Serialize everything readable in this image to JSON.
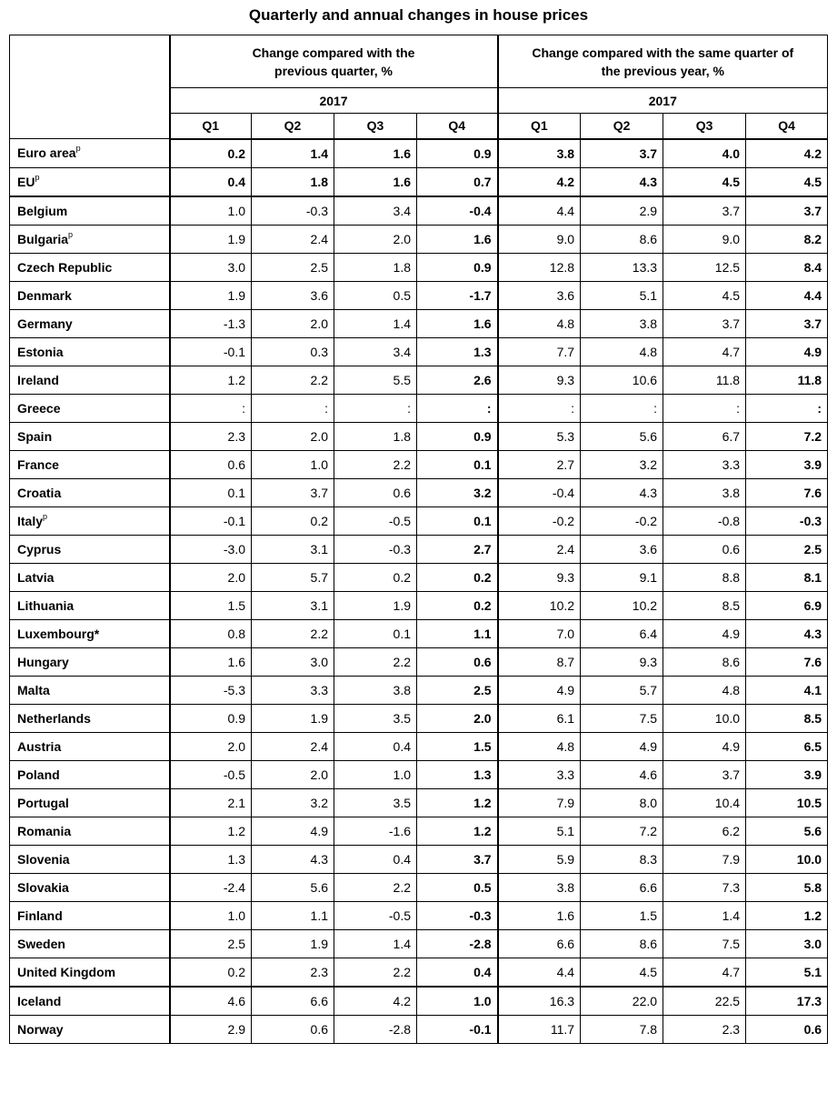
{
  "title": "Quarterly and annual changes in house prices",
  "header": {
    "group1": "Change compared with the previous quarter, %",
    "group2": "Change compared with the same quarter of the previous year, %",
    "year": "2017",
    "quarters": [
      "Q1",
      "Q2",
      "Q3",
      "Q4"
    ]
  },
  "rows": [
    {
      "name": "Euro area",
      "sup": "p",
      "qoq": [
        "0.2",
        "1.4",
        "1.6",
        "0.9"
      ],
      "yoy": [
        "3.8",
        "3.7",
        "4.0",
        "4.2"
      ],
      "aggregate": true
    },
    {
      "name": "EU",
      "sup": "p",
      "qoq": [
        "0.4",
        "1.8",
        "1.6",
        "0.7"
      ],
      "yoy": [
        "4.2",
        "4.3",
        "4.5",
        "4.5"
      ],
      "aggregate": true
    },
    {
      "name": "Belgium",
      "sup": "",
      "qoq": [
        "1.0",
        "-0.3",
        "3.4",
        "-0.4"
      ],
      "yoy": [
        "4.4",
        "2.9",
        "3.7",
        "3.7"
      ]
    },
    {
      "name": "Bulgaria",
      "sup": "p",
      "qoq": [
        "1.9",
        "2.4",
        "2.0",
        "1.6"
      ],
      "yoy": [
        "9.0",
        "8.6",
        "9.0",
        "8.2"
      ]
    },
    {
      "name": "Czech Republic",
      "sup": "",
      "qoq": [
        "3.0",
        "2.5",
        "1.8",
        "0.9"
      ],
      "yoy": [
        "12.8",
        "13.3",
        "12.5",
        "8.4"
      ]
    },
    {
      "name": "Denmark",
      "sup": "",
      "qoq": [
        "1.9",
        "3.6",
        "0.5",
        "-1.7"
      ],
      "yoy": [
        "3.6",
        "5.1",
        "4.5",
        "4.4"
      ]
    },
    {
      "name": "Germany",
      "sup": "",
      "qoq": [
        "-1.3",
        "2.0",
        "1.4",
        "1.6"
      ],
      "yoy": [
        "4.8",
        "3.8",
        "3.7",
        "3.7"
      ]
    },
    {
      "name": "Estonia",
      "sup": "",
      "qoq": [
        "-0.1",
        "0.3",
        "3.4",
        "1.3"
      ],
      "yoy": [
        "7.7",
        "4.8",
        "4.7",
        "4.9"
      ]
    },
    {
      "name": "Ireland",
      "sup": "",
      "qoq": [
        "1.2",
        "2.2",
        "5.5",
        "2.6"
      ],
      "yoy": [
        "9.3",
        "10.6",
        "11.8",
        "11.8"
      ]
    },
    {
      "name": "Greece",
      "sup": "",
      "qoq": [
        ":",
        ":",
        ":",
        ":"
      ],
      "yoy": [
        ":",
        ":",
        ":",
        ":"
      ]
    },
    {
      "name": "Spain",
      "sup": "",
      "qoq": [
        "2.3",
        "2.0",
        "1.8",
        "0.9"
      ],
      "yoy": [
        "5.3",
        "5.6",
        "6.7",
        "7.2"
      ]
    },
    {
      "name": "France",
      "sup": "",
      "qoq": [
        "0.6",
        "1.0",
        "2.2",
        "0.1"
      ],
      "yoy": [
        "2.7",
        "3.2",
        "3.3",
        "3.9"
      ]
    },
    {
      "name": "Croatia",
      "sup": "",
      "qoq": [
        "0.1",
        "3.7",
        "0.6",
        "3.2"
      ],
      "yoy": [
        "-0.4",
        "4.3",
        "3.8",
        "7.6"
      ]
    },
    {
      "name": "Italy",
      "sup": "p",
      "qoq": [
        "-0.1",
        "0.2",
        "-0.5",
        "0.1"
      ],
      "yoy": [
        "-0.2",
        "-0.2",
        "-0.8",
        "-0.3"
      ]
    },
    {
      "name": "Cyprus",
      "sup": "",
      "qoq": [
        "-3.0",
        "3.1",
        "-0.3",
        "2.7"
      ],
      "yoy": [
        "2.4",
        "3.6",
        "0.6",
        "2.5"
      ]
    },
    {
      "name": "Latvia",
      "sup": "",
      "qoq": [
        "2.0",
        "5.7",
        "0.2",
        "0.2"
      ],
      "yoy": [
        "9.3",
        "9.1",
        "8.8",
        "8.1"
      ]
    },
    {
      "name": "Lithuania",
      "sup": "",
      "qoq": [
        "1.5",
        "3.1",
        "1.9",
        "0.2"
      ],
      "yoy": [
        "10.2",
        "10.2",
        "8.5",
        "6.9"
      ]
    },
    {
      "name": "Luxembourg*",
      "sup": "",
      "qoq": [
        "0.8",
        "2.2",
        "0.1",
        "1.1"
      ],
      "yoy": [
        "7.0",
        "6.4",
        "4.9",
        "4.3"
      ]
    },
    {
      "name": "Hungary",
      "sup": "",
      "qoq": [
        "1.6",
        "3.0",
        "2.2",
        "0.6"
      ],
      "yoy": [
        "8.7",
        "9.3",
        "8.6",
        "7.6"
      ]
    },
    {
      "name": "Malta",
      "sup": "",
      "qoq": [
        "-5.3",
        "3.3",
        "3.8",
        "2.5"
      ],
      "yoy": [
        "4.9",
        "5.7",
        "4.8",
        "4.1"
      ]
    },
    {
      "name": "Netherlands",
      "sup": "",
      "qoq": [
        "0.9",
        "1.9",
        "3.5",
        "2.0"
      ],
      "yoy": [
        "6.1",
        "7.5",
        "10.0",
        "8.5"
      ]
    },
    {
      "name": "Austria",
      "sup": "",
      "qoq": [
        "2.0",
        "2.4",
        "0.4",
        "1.5"
      ],
      "yoy": [
        "4.8",
        "4.9",
        "4.9",
        "6.5"
      ]
    },
    {
      "name": "Poland",
      "sup": "",
      "qoq": [
        "-0.5",
        "2.0",
        "1.0",
        "1.3"
      ],
      "yoy": [
        "3.3",
        "4.6",
        "3.7",
        "3.9"
      ]
    },
    {
      "name": "Portugal",
      "sup": "",
      "qoq": [
        "2.1",
        "3.2",
        "3.5",
        "1.2"
      ],
      "yoy": [
        "7.9",
        "8.0",
        "10.4",
        "10.5"
      ]
    },
    {
      "name": "Romania",
      "sup": "",
      "qoq": [
        "1.2",
        "4.9",
        "-1.6",
        "1.2"
      ],
      "yoy": [
        "5.1",
        "7.2",
        "6.2",
        "5.6"
      ]
    },
    {
      "name": "Slovenia",
      "sup": "",
      "qoq": [
        "1.3",
        "4.3",
        "0.4",
        "3.7"
      ],
      "yoy": [
        "5.9",
        "8.3",
        "7.9",
        "10.0"
      ]
    },
    {
      "name": "Slovakia",
      "sup": "",
      "qoq": [
        "-2.4",
        "5.6",
        "2.2",
        "0.5"
      ],
      "yoy": [
        "3.8",
        "6.6",
        "7.3",
        "5.8"
      ]
    },
    {
      "name": "Finland",
      "sup": "",
      "qoq": [
        "1.0",
        "1.1",
        "-0.5",
        "-0.3"
      ],
      "yoy": [
        "1.6",
        "1.5",
        "1.4",
        "1.2"
      ]
    },
    {
      "name": "Sweden",
      "sup": "",
      "qoq": [
        "2.5",
        "1.9",
        "1.4",
        "-2.8"
      ],
      "yoy": [
        "6.6",
        "8.6",
        "7.5",
        "3.0"
      ]
    },
    {
      "name": "United Kingdom",
      "sup": "",
      "qoq": [
        "0.2",
        "2.3",
        "2.2",
        "0.4"
      ],
      "yoy": [
        "4.4",
        "4.5",
        "4.7",
        "5.1"
      ]
    },
    {
      "name": "Iceland",
      "sup": "",
      "qoq": [
        "4.6",
        "6.6",
        "4.2",
        "1.0"
      ],
      "yoy": [
        "16.3",
        "22.0",
        "22.5",
        "17.3"
      ]
    },
    {
      "name": "Norway",
      "sup": "",
      "qoq": [
        "2.9",
        "0.6",
        "-2.8",
        "-0.1"
      ],
      "yoy": [
        "11.7",
        "7.8",
        "2.3",
        "0.6"
      ]
    }
  ]
}
